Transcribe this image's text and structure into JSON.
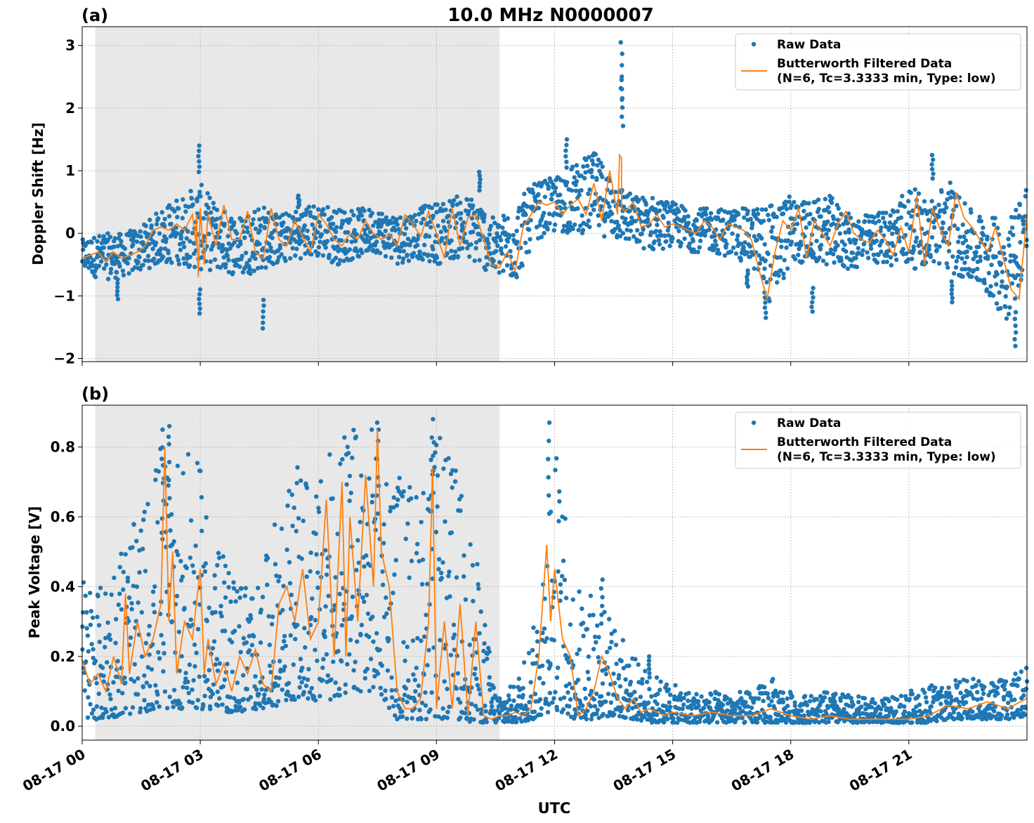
{
  "title": "10.0 MHz N0000007",
  "xlabel": "UTC",
  "x_tick_labels": [
    "08-17 00",
    "08-17 03",
    "08-17 06",
    "08-17 09",
    "08-17 12",
    "08-17 15",
    "08-17 18",
    "08-17 21"
  ],
  "colors": {
    "raw": "#1f77b4",
    "filtered": "#ff7f0e",
    "shade": "#e8e8e8"
  },
  "chart_data": [
    {
      "panel_label": "(a)",
      "type": "scatter",
      "title": "10.0 MHz N0000007",
      "ylabel": "Doppler Shift [Hz]",
      "xlabel": "",
      "xlim_hours": [
        0,
        24
      ],
      "ylim": [
        -2.05,
        3.3
      ],
      "yticks": [
        -2,
        -1,
        0,
        1,
        2,
        3
      ],
      "ytick_labels": [
        "−2",
        "−1",
        "0",
        "1",
        "2",
        "3"
      ],
      "shaded_interval_hours": [
        0.33,
        10.6
      ],
      "grid": true,
      "legend_position": "upper right",
      "legend": [
        "Raw Data",
        "Butterworth Filtered Data",
        "(N=6, Tc=3.3333 min, Type: low)"
      ],
      "series": [
        {
          "name": "Raw Data",
          "style": "points",
          "band_hours": [
            0,
            0.5,
            1,
            1.5,
            2,
            2.5,
            3,
            3.5,
            4,
            4.5,
            5,
            5.5,
            6,
            6.5,
            7,
            7.5,
            8,
            8.5,
            9,
            9.5,
            10,
            10.5,
            11,
            11.5,
            12,
            12.5,
            13,
            13.5,
            14,
            14.5,
            15,
            15.5,
            16,
            16.5,
            17,
            17.5,
            18,
            18.5,
            19,
            19.5,
            20,
            20.5,
            21,
            21.5,
            22,
            22.5,
            23,
            23.5,
            24
          ],
          "band_low": [
            -0.6,
            -0.75,
            -0.7,
            -0.6,
            -0.5,
            -0.5,
            -0.6,
            -0.6,
            -0.7,
            -0.6,
            -0.5,
            -0.4,
            -0.4,
            -0.5,
            -0.4,
            -0.3,
            -0.5,
            -0.4,
            -0.5,
            -0.4,
            -0.5,
            -0.7,
            -0.8,
            -0.1,
            0,
            0,
            0,
            -0.1,
            -0.2,
            -0.3,
            -0.2,
            -0.3,
            -0.3,
            -0.4,
            -0.5,
            -1.2,
            -0.5,
            -0.5,
            -0.5,
            -0.6,
            -0.5,
            -0.5,
            -0.6,
            -0.5,
            -0.6,
            -0.8,
            -1.0,
            -1.4,
            -0.5
          ],
          "band_high": [
            -0.1,
            0,
            0,
            0.1,
            0.4,
            0.6,
            0.8,
            0.4,
            0.3,
            0.5,
            0.3,
            0.4,
            0.5,
            0.4,
            0.4,
            0.4,
            0.3,
            0.4,
            0.5,
            0.6,
            0.6,
            0.2,
            0.5,
            0.8,
            0.9,
            1.1,
            1.3,
            0.9,
            0.6,
            0.6,
            0.5,
            0.4,
            0.4,
            0.4,
            0.4,
            0.5,
            0.6,
            0.5,
            0.6,
            0.3,
            0.3,
            0.4,
            0.8,
            0.5,
            0.9,
            0.4,
            0.3,
            0.2,
            0.9
          ],
          "outliers": [
            [
              2.97,
              1.4
            ],
            [
              2.98,
              -1.28
            ],
            [
              4.6,
              -1.52
            ],
            [
              13.7,
              3.05
            ],
            [
              13.72,
              2.45
            ],
            [
              16.9,
              -0.85
            ],
            [
              17.35,
              -1.35
            ],
            [
              18.55,
              -1.25
            ],
            [
              22.1,
              -1.1
            ],
            [
              23.7,
              -1.8
            ],
            [
              12.3,
              1.5
            ],
            [
              10.1,
              0.98
            ],
            [
              21.6,
              1.25
            ],
            [
              5.5,
              0.6
            ],
            [
              0.9,
              -1.05
            ]
          ]
        },
        {
          "name": "Butterworth Filtered Data",
          "style": "line",
          "x_hours": [
            0,
            0.2,
            0.4,
            0.6,
            0.8,
            1.0,
            1.2,
            1.4,
            1.6,
            1.8,
            2.0,
            2.2,
            2.4,
            2.6,
            2.8,
            2.9,
            3.0,
            3.1,
            3.2,
            3.4,
            3.6,
            3.8,
            4.0,
            4.2,
            4.4,
            4.6,
            4.8,
            5.0,
            5.2,
            5.4,
            5.6,
            5.8,
            6.0,
            6.2,
            6.4,
            6.6,
            6.8,
            7.0,
            7.2,
            7.4,
            7.6,
            7.8,
            8.0,
            8.2,
            8.4,
            8.6,
            8.8,
            9.0,
            9.2,
            9.4,
            9.6,
            9.8,
            10.0,
            10.2,
            10.4,
            10.6,
            10.8,
            11.0,
            11.2,
            11.4,
            11.6,
            11.8,
            12.0,
            12.2,
            12.4,
            12.6,
            12.8,
            13.0,
            13.2,
            13.4,
            13.6,
            13.7,
            13.8,
            14.0,
            14.2,
            14.4,
            14.6,
            14.8,
            15.0,
            15.2,
            15.4,
            15.6,
            15.8,
            16.0,
            16.2,
            16.4,
            16.6,
            16.8,
            17.0,
            17.2,
            17.4,
            17.6,
            17.8,
            18.0,
            18.2,
            18.4,
            18.6,
            18.8,
            19.0,
            19.2,
            19.4,
            19.6,
            19.8,
            20.0,
            20.2,
            20.4,
            20.6,
            20.8,
            21.0,
            21.2,
            21.4,
            21.6,
            21.8,
            22.0,
            22.2,
            22.4,
            22.6,
            22.8,
            23.0,
            23.2,
            23.4,
            23.6,
            23.8,
            24.0
          ],
          "values": [
            -0.4,
            -0.35,
            -0.3,
            -0.45,
            -0.3,
            -0.4,
            -0.35,
            -0.3,
            -0.2,
            0.05,
            0.1,
            0.05,
            0.15,
            0.05,
            0.3,
            -0.2,
            0.4,
            -0.5,
            0.3,
            -0.2,
            0.45,
            -0.1,
            -0.1,
            0.35,
            -0.3,
            -0.4,
            0.4,
            -0.1,
            -0.2,
            0.2,
            -0.05,
            -0.3,
            0.3,
            0.15,
            -0.1,
            -0.2,
            0.0,
            -0.1,
            0.2,
            0.0,
            -0.1,
            0.0,
            -0.2,
            0.3,
            0.15,
            -0.05,
            0.35,
            0.0,
            -0.4,
            0.4,
            -0.2,
            0.25,
            0.3,
            -0.1,
            -0.5,
            -0.55,
            -0.3,
            -0.6,
            0.1,
            0.3,
            0.5,
            0.45,
            0.5,
            0.3,
            0.45,
            0.55,
            0.3,
            0.8,
            0.2,
            1.0,
            0.3,
            1.2,
            0.35,
            0.5,
            0.1,
            0.15,
            0.3,
            0.1,
            0.15,
            0.1,
            0.05,
            0.0,
            0.2,
            0.1,
            -0.1,
            0.15,
            0.1,
            0.05,
            -0.1,
            -0.6,
            -1.05,
            -0.3,
            0.2,
            0.05,
            0.4,
            -0.4,
            0.2,
            0.0,
            -0.2,
            0.15,
            0.35,
            0.0,
            -0.1,
            -0.15,
            0.05,
            -0.1,
            -0.35,
            0.1,
            -0.3,
            0.6,
            -0.5,
            0.4,
            0.05,
            -0.2,
            0.65,
            0.25,
            0.1,
            -0.1,
            -0.3,
            0.1,
            -0.4,
            -0.9,
            -1.05,
            0.3
          ],
          "spikes": [
            [
              2.9,
              0.3
            ],
            [
              2.95,
              -0.7
            ],
            [
              3.0,
              0.4
            ],
            [
              13.65,
              1.25
            ],
            [
              13.7,
              0.4
            ]
          ]
        }
      ]
    },
    {
      "panel_label": "(b)",
      "type": "scatter",
      "title": "",
      "ylabel": "Peak Voltage [V]",
      "xlabel": "UTC",
      "xlim_hours": [
        0,
        24
      ],
      "ylim": [
        -0.04,
        0.92
      ],
      "yticks": [
        0.0,
        0.2,
        0.4,
        0.6,
        0.8
      ],
      "ytick_labels": [
        "0.0",
        "0.2",
        "0.4",
        "0.6",
        "0.8"
      ],
      "shaded_interval_hours": [
        0.33,
        10.6
      ],
      "grid": true,
      "legend_position": "upper right",
      "legend": [
        "Raw Data",
        "Butterworth Filtered Data",
        "(N=6, Tc=3.3333 min, Type: low)"
      ],
      "series": [
        {
          "name": "Raw Data",
          "style": "points",
          "band_hours": [
            0,
            0.5,
            1,
            1.5,
            2,
            2.5,
            3,
            3.5,
            4,
            4.5,
            5,
            5.5,
            6,
            6.5,
            7,
            7.5,
            8,
            8.5,
            9,
            9.5,
            10,
            10.5,
            11,
            11.5,
            12,
            12.5,
            13,
            13.5,
            14,
            14.5,
            15,
            15.5,
            16,
            16.5,
            17,
            17.5,
            18,
            18.5,
            19,
            19.5,
            20,
            20.5,
            21,
            21.5,
            22,
            22.5,
            23,
            23.5,
            24
          ],
          "band_low": [
            0.02,
            0.02,
            0.03,
            0.04,
            0.05,
            0.05,
            0.05,
            0.04,
            0.04,
            0.05,
            0.06,
            0.08,
            0.07,
            0.08,
            0.1,
            0.1,
            0.02,
            0.02,
            0.02,
            0.02,
            0.01,
            0.01,
            0.01,
            0.02,
            0.05,
            0.02,
            0.02,
            0.03,
            0.02,
            0.01,
            0.01,
            0.01,
            0.01,
            0.01,
            0.01,
            0.01,
            0.01,
            0.01,
            0.01,
            0.01,
            0.01,
            0.01,
            0.01,
            0.01,
            0.02,
            0.02,
            0.02,
            0.02,
            0.03
          ],
          "band_high": [
            0.45,
            0.4,
            0.55,
            0.6,
            0.85,
            0.8,
            0.75,
            0.5,
            0.45,
            0.4,
            0.65,
            0.75,
            0.7,
            0.85,
            0.87,
            0.87,
            0.75,
            0.7,
            0.85,
            0.75,
            0.5,
            0.1,
            0.12,
            0.3,
            0.85,
            0.4,
            0.4,
            0.3,
            0.2,
            0.15,
            0.12,
            0.1,
            0.1,
            0.1,
            0.1,
            0.14,
            0.1,
            0.09,
            0.1,
            0.09,
            0.08,
            0.08,
            0.1,
            0.12,
            0.13,
            0.14,
            0.14,
            0.13,
            0.18
          ],
          "outliers": [
            [
              11.85,
              0.87
            ],
            [
              8.9,
              0.88
            ],
            [
              2.05,
              0.85
            ],
            [
              2.2,
              0.86
            ],
            [
              7.5,
              0.87
            ],
            [
              13.2,
              0.42
            ],
            [
              14.4,
              0.2
            ],
            [
              19.1,
              0.07
            ]
          ]
        },
        {
          "name": "Butterworth Filtered Data",
          "style": "line",
          "x_hours": [
            0,
            0.2,
            0.4,
            0.6,
            0.8,
            1.0,
            1.1,
            1.2,
            1.4,
            1.6,
            1.8,
            2.0,
            2.1,
            2.2,
            2.3,
            2.4,
            2.6,
            2.8,
            3.0,
            3.1,
            3.2,
            3.4,
            3.6,
            3.8,
            4.0,
            4.2,
            4.4,
            4.6,
            4.8,
            5.0,
            5.2,
            5.4,
            5.6,
            5.8,
            6.0,
            6.2,
            6.4,
            6.6,
            6.7,
            6.8,
            7.0,
            7.2,
            7.4,
            7.5,
            7.6,
            7.8,
            8.0,
            8.2,
            8.4,
            8.6,
            8.8,
            8.9,
            9.0,
            9.2,
            9.4,
            9.6,
            9.8,
            10.0,
            10.2,
            10.4,
            10.6,
            10.8,
            11.0,
            11.2,
            11.4,
            11.6,
            11.8,
            11.9,
            12.0,
            12.2,
            12.4,
            12.6,
            12.8,
            13.0,
            13.2,
            13.4,
            13.6,
            13.8,
            14.0,
            14.2,
            14.4,
            14.6,
            14.8,
            15.0,
            15.5,
            16.0,
            16.5,
            17.0,
            17.5,
            18.0,
            18.5,
            19.0,
            19.5,
            20.0,
            20.5,
            21.0,
            21.5,
            22.0,
            22.5,
            23.0,
            23.5,
            24.0
          ],
          "values": [
            0.19,
            0.12,
            0.15,
            0.1,
            0.2,
            0.12,
            0.38,
            0.15,
            0.3,
            0.2,
            0.25,
            0.35,
            0.8,
            0.3,
            0.5,
            0.15,
            0.3,
            0.25,
            0.45,
            0.15,
            0.25,
            0.12,
            0.18,
            0.1,
            0.2,
            0.15,
            0.22,
            0.12,
            0.1,
            0.35,
            0.4,
            0.3,
            0.45,
            0.25,
            0.3,
            0.65,
            0.2,
            0.7,
            0.2,
            0.6,
            0.3,
            0.72,
            0.4,
            0.85,
            0.5,
            0.4,
            0.1,
            0.05,
            0.05,
            0.08,
            0.3,
            0.74,
            0.05,
            0.3,
            0.05,
            0.35,
            0.03,
            0.3,
            0.03,
            0.02,
            0.03,
            0.03,
            0.04,
            0.03,
            0.05,
            0.2,
            0.52,
            0.3,
            0.45,
            0.25,
            0.2,
            0.03,
            0.05,
            0.1,
            0.2,
            0.15,
            0.08,
            0.05,
            0.08,
            0.04,
            0.05,
            0.04,
            0.03,
            0.04,
            0.03,
            0.04,
            0.03,
            0.03,
            0.05,
            0.03,
            0.02,
            0.03,
            0.02,
            0.02,
            0.02,
            0.02,
            0.03,
            0.06,
            0.05,
            0.07,
            0.05,
            0.08
          ]
        }
      ]
    }
  ]
}
